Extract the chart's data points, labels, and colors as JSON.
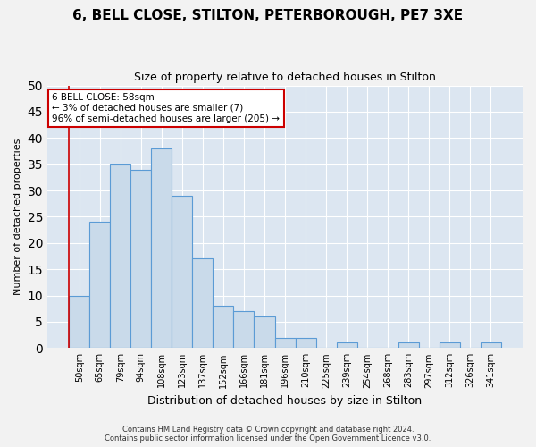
{
  "title": "6, BELL CLOSE, STILTON, PETERBOROUGH, PE7 3XE",
  "subtitle": "Size of property relative to detached houses in Stilton",
  "xlabel": "Distribution of detached houses by size in Stilton",
  "ylabel": "Number of detached properties",
  "categories": [
    "50sqm",
    "65sqm",
    "79sqm",
    "94sqm",
    "108sqm",
    "123sqm",
    "137sqm",
    "152sqm",
    "166sqm",
    "181sqm",
    "196sqm",
    "210sqm",
    "225sqm",
    "239sqm",
    "254sqm",
    "268sqm",
    "283sqm",
    "297sqm",
    "312sqm",
    "326sqm",
    "341sqm"
  ],
  "values": [
    10,
    24,
    35,
    34,
    38,
    29,
    17,
    8,
    7,
    6,
    2,
    2,
    0,
    1,
    0,
    0,
    1,
    0,
    1,
    0,
    1
  ],
  "bar_color": "#c9daea",
  "bar_edge_color": "#5b9bd5",
  "annotation_box_text": "6 BELL CLOSE: 58sqm\n← 3% of detached houses are smaller (7)\n96% of semi-detached houses are larger (205) →",
  "annotation_box_color": "#ffffff",
  "annotation_box_edge_color": "#cc0000",
  "ylim": [
    0,
    50
  ],
  "yticks": [
    0,
    5,
    10,
    15,
    20,
    25,
    30,
    35,
    40,
    45,
    50
  ],
  "bg_color": "#dce6f1",
  "fig_color": "#f2f2f2",
  "footer_line1": "Contains HM Land Registry data © Crown copyright and database right 2024.",
  "footer_line2": "Contains public sector information licensed under the Open Government Licence v3.0.",
  "title_fontsize": 11,
  "subtitle_fontsize": 9,
  "xlabel_fontsize": 9,
  "ylabel_fontsize": 8,
  "tick_fontsize": 7
}
